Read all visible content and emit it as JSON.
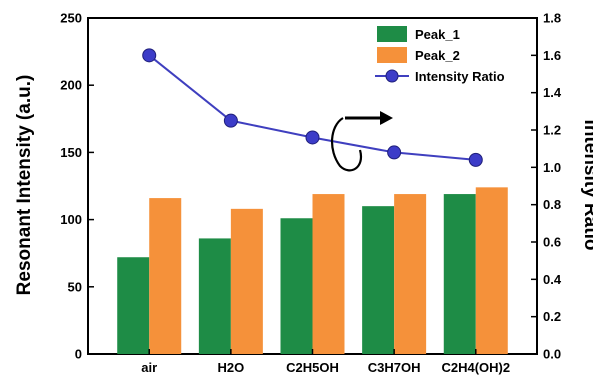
{
  "chart_data": {
    "type": "bar",
    "categories": [
      "air",
      "H2O",
      "C2H5OH",
      "C3H7OH",
      "C2H4(OH)2"
    ],
    "series": [
      {
        "name": "Peak_1",
        "kind": "bar",
        "axis": "left",
        "color": "#1e8c46",
        "values": [
          72,
          86,
          101,
          110,
          119
        ]
      },
      {
        "name": "Peak_2",
        "kind": "bar",
        "axis": "left",
        "color": "#f5913a",
        "values": [
          116,
          108,
          119,
          119,
          124
        ]
      },
      {
        "name": "Intensity Ratio",
        "kind": "line",
        "axis": "right",
        "color": "#3f3fbf",
        "values": [
          1.6,
          1.25,
          1.16,
          1.08,
          1.04
        ]
      }
    ],
    "ylabel": "Resonant Intensity (a.u.)",
    "y2label": "Intensity Ratio",
    "ylim": [
      0,
      250
    ],
    "y2lim": [
      0.0,
      1.8
    ],
    "yticks": [
      "0",
      "50",
      "100",
      "150",
      "200",
      "250"
    ],
    "y2ticks": [
      "0.0",
      "0.2",
      "0.4",
      "0.6",
      "0.8",
      "1.0",
      "1.2",
      "1.4",
      "1.6",
      "1.8"
    ],
    "legend_position": "top-right",
    "grid": false,
    "annotation": "circular arrow pointing to right axis"
  }
}
